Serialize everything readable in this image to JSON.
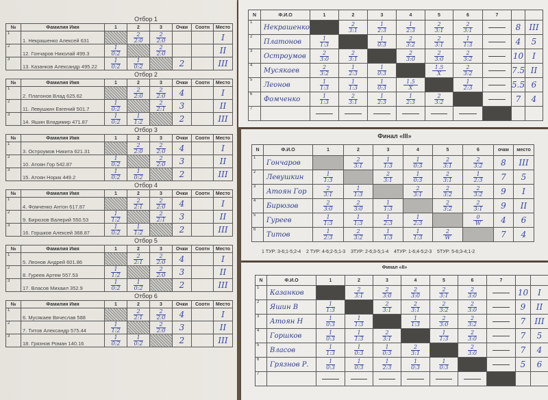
{
  "groups_header": {
    "no": "№",
    "name": "Фамилия Имя",
    "cols": [
      "1",
      "2",
      "3"
    ],
    "points": "Очки",
    "ratio": "Соотн",
    "place": "Место"
  },
  "groups": [
    {
      "title": "Отбор 1",
      "players": [
        {
          "n": "1",
          "name": "1. Некрашенко Алексей 631",
          "res": [
            null,
            [
              "2",
              "2:0"
            ],
            [
              "2",
              "2:0"
            ]
          ],
          "pts": "",
          "place": "I"
        },
        {
          "n": "2",
          "name": "12. Гончаров Николай 499.3",
          "res": [
            [
              "1",
              "0:2"
            ],
            null,
            [
              "2",
              "2:0"
            ]
          ],
          "pts": "",
          "place": "II"
        },
        {
          "n": "3",
          "name": "13. Казанков Александр 495.22",
          "res": [
            [
              "1",
              "0:2"
            ],
            [
              "1",
              "0:2"
            ],
            null
          ],
          "pts": "2",
          "place": "III"
        }
      ]
    },
    {
      "title": "Отбор 2",
      "players": [
        {
          "n": "1",
          "name": "2. Платонов Влад 625.62",
          "res": [
            null,
            [
              "2",
              "2:0"
            ],
            [
              "2",
              "2:0"
            ]
          ],
          "pts": "4",
          "place": "I"
        },
        {
          "n": "2",
          "name": "11. Левушкин Евгений 501.7",
          "res": [
            [
              "1",
              "0:2"
            ],
            null,
            [
              "2",
              "2:1"
            ]
          ],
          "pts": "3",
          "place": "II"
        },
        {
          "n": "3",
          "name": "14. Яшин Владимир 471.87",
          "res": [
            [
              "1",
              "0:2"
            ],
            [
              "1",
              "1:2"
            ],
            null
          ],
          "pts": "2",
          "place": "III"
        }
      ]
    },
    {
      "title": "Отбор 3",
      "players": [
        {
          "n": "1",
          "name": "3. Остроумов Никита 621.31",
          "res": [
            null,
            [
              "2",
              "2:0"
            ],
            [
              "2",
              "2:0"
            ]
          ],
          "pts": "4",
          "place": "I"
        },
        {
          "n": "2",
          "name": "10. Атоян Гор 542.87",
          "res": [
            [
              "1",
              "0:2"
            ],
            null,
            [
              "2",
              "2:0"
            ]
          ],
          "pts": "3",
          "place": "II"
        },
        {
          "n": "3",
          "name": "15. Атоян Норик 449.2",
          "res": [
            [
              "1",
              "0:2"
            ],
            [
              "1",
              "0:2"
            ],
            null
          ],
          "pts": "2",
          "place": "III"
        }
      ]
    },
    {
      "title": "Отбор 4",
      "players": [
        {
          "n": "1",
          "name": "4. Фомченко Антон 617.87",
          "res": [
            null,
            [
              "2",
              "2:1"
            ],
            [
              "2",
              "2:0"
            ]
          ],
          "pts": "4",
          "place": "I"
        },
        {
          "n": "2",
          "name": "9. Бирюзов Валерий 550.53",
          "res": [
            [
              "1",
              "1:2"
            ],
            null,
            [
              "2",
              "2:1"
            ]
          ],
          "pts": "3",
          "place": "II"
        },
        {
          "n": "3",
          "name": "16. Горшков Алексей 368.87",
          "res": [
            [
              "1",
              "0:2"
            ],
            [
              "1",
              "1:2"
            ],
            null
          ],
          "pts": "2",
          "place": "III"
        }
      ]
    },
    {
      "title": "Отбор 5",
      "players": [
        {
          "n": "1",
          "name": "5. Леонов Андрей 601.86",
          "res": [
            null,
            [
              "2",
              "2:1"
            ],
            [
              "2",
              "2:0"
            ]
          ],
          "pts": "4",
          "place": "I"
        },
        {
          "n": "2",
          "name": "8. Гуреев Артем 557.53",
          "res": [
            [
              "1",
              "1:2"
            ],
            null,
            [
              "2",
              "2:0"
            ]
          ],
          "pts": "3",
          "place": "II"
        },
        {
          "n": "3",
          "name": "17. Власов Михаил 352.9",
          "res": [
            [
              "1",
              "0:2"
            ],
            [
              "1",
              "0:2"
            ],
            null
          ],
          "pts": "2",
          "place": "III"
        }
      ]
    },
    {
      "title": "Отбор 6",
      "players": [
        {
          "n": "1",
          "name": "6. Мусякаев Вячеслав 588",
          "res": [
            null,
            [
              "2",
              "2:1"
            ],
            [
              "2",
              "2:0"
            ]
          ],
          "pts": "4",
          "place": "I"
        },
        {
          "n": "2",
          "name": "7. Титов Александр 575.44",
          "res": [
            [
              "1",
              "1:2"
            ],
            null,
            [
              "2",
              "2:0"
            ]
          ],
          "pts": "3",
          "place": "II"
        },
        {
          "n": "3",
          "name": "18. Грязнов Роман 140.16",
          "res": [
            [
              "1",
              "0:2"
            ],
            [
              "1",
              "0:2"
            ],
            null
          ],
          "pts": "2",
          "place": "III"
        }
      ]
    }
  ],
  "top_table": {
    "header": {
      "no": "N",
      "name": "Ф.И.О",
      "cols": [
        "1",
        "2",
        "3",
        "4",
        "5",
        "6",
        "7"
      ],
      "points": "",
      "place": ""
    },
    "rows": [
      {
        "n": "1",
        "name": "Некрашенко",
        "res": [
          null,
          [
            "2",
            "3:1"
          ],
          [
            "1",
            "2:3"
          ],
          [
            "1",
            "2:3"
          ],
          [
            "2",
            "3:1"
          ],
          [
            "2",
            "3:1"
          ],
          "—"
        ],
        "pts": "8",
        "place": "III"
      },
      {
        "n": "2",
        "name": "Платонов",
        "res": [
          [
            "1",
            "1:3"
          ],
          null,
          [
            "1",
            "0:3"
          ],
          [
            "2",
            "3:2"
          ],
          [
            "2",
            "3:1"
          ],
          [
            "1",
            "1:3"
          ],
          "—"
        ],
        "pts": "4",
        "place": "5"
      },
      {
        "n": "3",
        "name": "Остроумов",
        "res": [
          [
            "2",
            "3:0"
          ],
          [
            "2",
            "3:1"
          ],
          null,
          [
            "2",
            "3:0"
          ],
          [
            "2",
            "3:0"
          ],
          [
            "2",
            "3:2"
          ],
          "—"
        ],
        "pts": "10",
        "place": "I"
      },
      {
        "n": "4",
        "name": "Мусякаев",
        "res": [
          [
            "2",
            "3:2"
          ],
          [
            "1",
            "2:3"
          ],
          [
            "1",
            "0:3"
          ],
          null,
          [
            "1.5",
            "X"
          ],
          [
            "2",
            "3:2"
          ],
          "—"
        ],
        "pts": "7.5",
        "place": "II"
      },
      {
        "n": "5",
        "name": "Леонов",
        "res": [
          [
            "1",
            "1:3"
          ],
          [
            "1",
            "1:3"
          ],
          [
            "1",
            "0:3"
          ],
          [
            "1.5",
            "X"
          ],
          null,
          [
            "1",
            "2:3"
          ],
          "—"
        ],
        "pts": "5.5",
        "place": "6"
      },
      {
        "n": "6",
        "name": "Фомченко",
        "res": [
          [
            "1",
            "1:3"
          ],
          [
            "2",
            "3:1"
          ],
          [
            "1",
            "2:3"
          ],
          [
            "1",
            "2:3"
          ],
          [
            "2",
            "3:2"
          ],
          null,
          "—"
        ],
        "pts": "7",
        "place": "4"
      },
      {
        "n": "7",
        "name": "",
        "res": [
          "—",
          "—",
          "—",
          "—",
          "—",
          "—",
          null
        ],
        "pts": "",
        "place": ""
      }
    ]
  },
  "final_iii": {
    "title": "Финал «III»",
    "header": {
      "no": "N",
      "name": "Ф.И.О",
      "cols": [
        "1",
        "2",
        "3",
        "4",
        "5",
        "6"
      ],
      "points": "очки",
      "place": "место"
    },
    "rows": [
      {
        "n": "1",
        "name": "Гончаров",
        "res": [
          null,
          [
            "2",
            "3:1"
          ],
          [
            "1",
            "1:3"
          ],
          [
            "1",
            "0:3"
          ],
          [
            "2",
            "3:1"
          ],
          [
            "2",
            "3:2"
          ]
        ],
        "pts": "8",
        "place": "III"
      },
      {
        "n": "2",
        "name": "Левушкин",
        "res": [
          [
            "1",
            "1:3"
          ],
          null,
          [
            "2",
            "3:1"
          ],
          [
            "1",
            "0:3"
          ],
          [
            "2",
            "3:1"
          ],
          [
            "1",
            "2:3"
          ]
        ],
        "pts": "7",
        "place": "5"
      },
      {
        "n": "3",
        "name": "Атоян Гор",
        "res": [
          [
            "2",
            "3:1"
          ],
          [
            "1",
            "1:3"
          ],
          null,
          [
            "2",
            "3:1"
          ],
          [
            "2",
            "3:2"
          ],
          [
            "2",
            "3:2"
          ]
        ],
        "pts": "9",
        "place": "I"
      },
      {
        "n": "4",
        "name": "Бирюзов",
        "res": [
          [
            "2",
            "3:0"
          ],
          [
            "2",
            "3:0"
          ],
          [
            "1",
            "1:3"
          ],
          null,
          [
            "2",
            "3:2"
          ],
          [
            "2",
            "3:1"
          ]
        ],
        "pts": "9",
        "place": "II"
      },
      {
        "n": "5",
        "name": "Гуреев",
        "res": [
          [
            "1",
            "1:3"
          ],
          [
            "1",
            "1:3"
          ],
          [
            "1",
            "2:3"
          ],
          [
            "1",
            "2:3"
          ],
          null,
          [
            "0",
            "W"
          ]
        ],
        "pts": "4",
        "place": "6"
      },
      {
        "n": "6",
        "name": "Титов",
        "res": [
          [
            "1",
            "2:3"
          ],
          [
            "2",
            "3:2"
          ],
          [
            "1",
            "1:3"
          ],
          [
            "1",
            "1:3"
          ],
          [
            "2",
            "W"
          ],
          null
        ],
        "pts": "7",
        "place": "4"
      }
    ],
    "footer": "1 ТУР: 3-6;1-5;2-4    2 ТУР: 4-6;2-5;1-3    3ТУР: 2-6;3-5;1-4    4ТУР: 1-6;4-5;2-3    5ТУР: 5-6;3-4;1-2"
  },
  "final_ii": {
    "title": "Финал «II»",
    "header": {
      "no": "N",
      "name": "Ф.И.О",
      "cols": [
        "1",
        "2",
        "3",
        "4",
        "5",
        "6",
        "7"
      ],
      "points": "",
      "place": ""
    },
    "rows": [
      {
        "n": "1",
        "name": "Казанков",
        "res": [
          null,
          [
            "2",
            "3:1"
          ],
          [
            "2",
            "3:0"
          ],
          [
            "2",
            "3:0"
          ],
          [
            "2",
            "3:1"
          ],
          [
            "2",
            "3:0"
          ],
          "—"
        ],
        "pts": "10",
        "place": "I"
      },
      {
        "n": "2",
        "name": "Яшин В",
        "res": [
          [
            "1",
            "1:3"
          ],
          null,
          [
            "2",
            "3:1"
          ],
          [
            "2",
            "3:1"
          ],
          [
            "2",
            "3:2"
          ],
          [
            "2",
            "3:0"
          ],
          "—"
        ],
        "pts": "9",
        "place": "II"
      },
      {
        "n": "3",
        "name": "Атоян Н",
        "res": [
          [
            "1",
            "0:3"
          ],
          [
            "1",
            "1:3"
          ],
          null,
          [
            "1",
            "1:3"
          ],
          [
            "2",
            "3:0"
          ],
          [
            "2",
            "3:2"
          ],
          "—"
        ],
        "pts": "7",
        "place": "III"
      },
      {
        "n": "4",
        "name": "Горшков",
        "res": [
          [
            "1",
            "0:3"
          ],
          [
            "1",
            "1:3"
          ],
          [
            "2",
            "3:1"
          ],
          null,
          [
            "1",
            "1:3"
          ],
          [
            "2",
            "3:0"
          ],
          "—"
        ],
        "pts": "7",
        "place": "5"
      },
      {
        "n": "5",
        "name": "Власов",
        "res": [
          [
            "1",
            "1:3"
          ],
          [
            "1",
            "0:3"
          ],
          [
            "1",
            "0:3"
          ],
          [
            "2",
            "3:1"
          ],
          null,
          [
            "2",
            "3:0"
          ],
          "—"
        ],
        "pts": "7",
        "place": "4"
      },
      {
        "n": "6",
        "name": "Грязнов Р.",
        "res": [
          [
            "1",
            "0:3"
          ],
          [
            "1",
            "0:3"
          ],
          [
            "1",
            "2:3"
          ],
          [
            "1",
            "0:3"
          ],
          [
            "1",
            "0:3"
          ],
          null,
          "—"
        ],
        "pts": "5",
        "place": "6"
      },
      {
        "n": "7",
        "name": "",
        "res": [
          "—",
          "—",
          "—",
          "—",
          "—",
          "—",
          null
        ],
        "pts": "",
        "place": ""
      }
    ]
  }
}
